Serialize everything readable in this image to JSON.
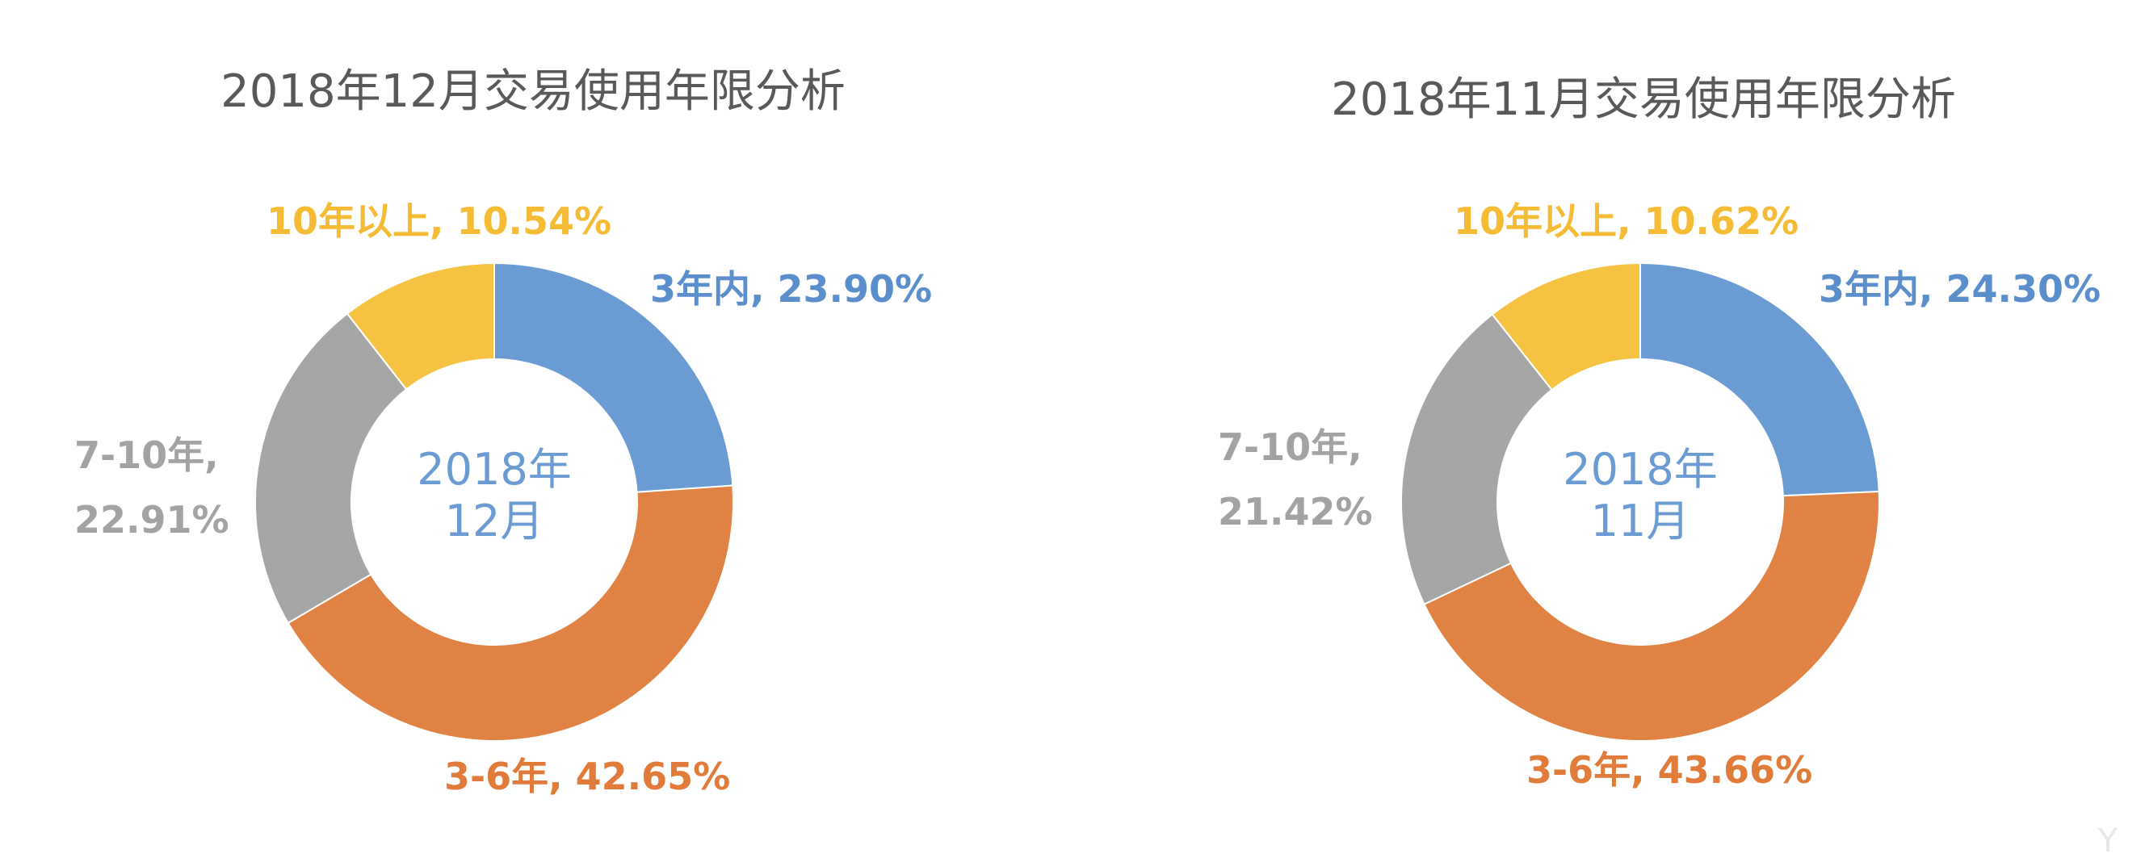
{
  "chart_data": [
    {
      "type": "pie",
      "title": "2018年12月交易使用年限分析",
      "center_label": [
        "2018年",
        "12月"
      ],
      "categories": [
        "3年内",
        "3-6年",
        "7-10年",
        "10年以上"
      ],
      "values": [
        23.9,
        42.65,
        22.91,
        10.54
      ],
      "labels": [
        [
          "3年内, 23.90%"
        ],
        [
          "3-6年, 42.65%"
        ],
        [
          "7-10年,",
          "22.91%"
        ],
        [
          "10年以上, 10.54%"
        ]
      ],
      "colors": [
        "#6a9bd3",
        "#e08244",
        "#a6a6a6",
        "#f5c242"
      ],
      "label_colors": [
        "#5b8fcc",
        "#e07b3a",
        "#a3a3a3",
        "#f5bb35"
      ]
    },
    {
      "type": "pie",
      "title": "2018年11月交易使用年限分析",
      "center_label": [
        "2018年",
        "11月"
      ],
      "categories": [
        "3年内",
        "3-6年",
        "7-10年",
        "10年以上"
      ],
      "values": [
        24.3,
        43.66,
        21.42,
        10.62
      ],
      "labels": [
        [
          "3年内, 24.30%"
        ],
        [
          "3-6年, 43.66%"
        ],
        [
          "7-10年,",
          "21.42%"
        ],
        [
          "10年以上, 10.62%"
        ]
      ],
      "colors": [
        "#6a9bd3",
        "#e08244",
        "#a6a6a6",
        "#f5c242"
      ],
      "label_colors": [
        "#5b8fcc",
        "#e07b3a",
        "#a3a3a3",
        "#f5bb35"
      ]
    }
  ]
}
